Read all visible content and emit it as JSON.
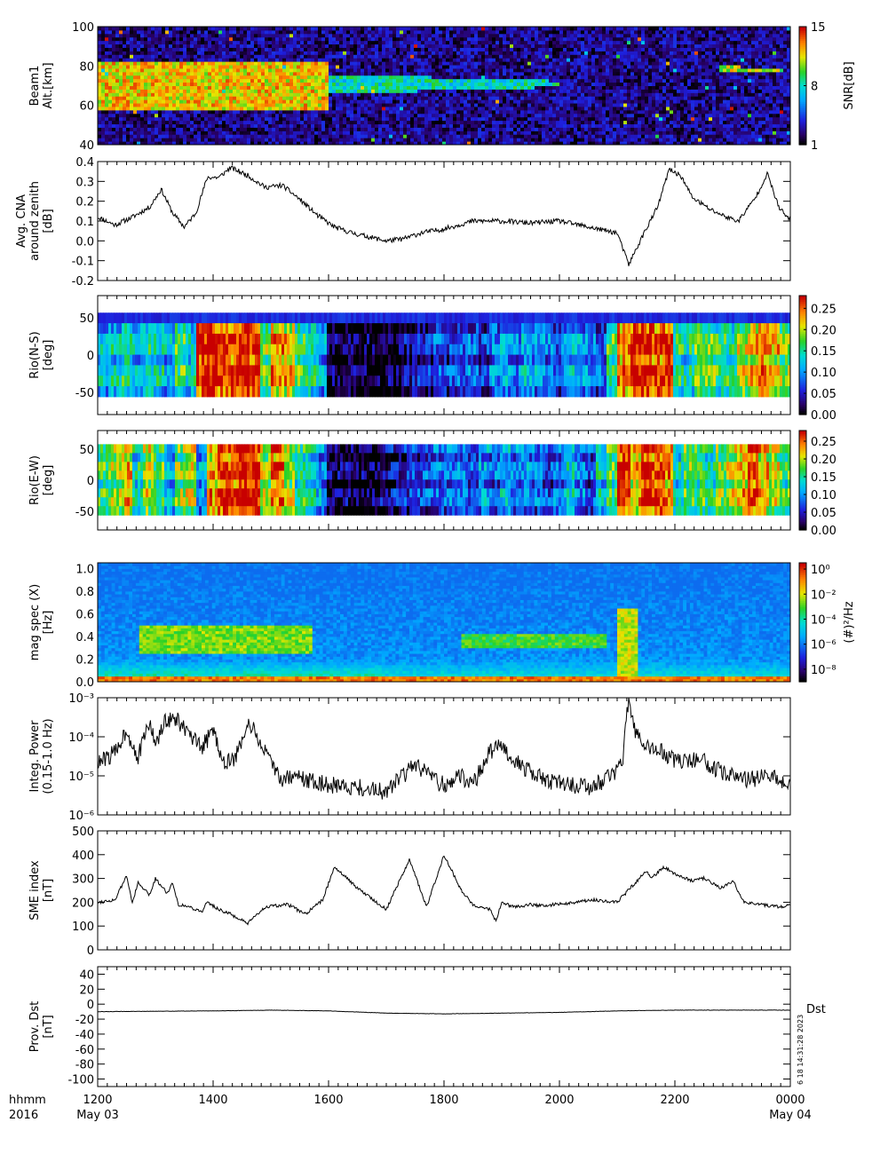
{
  "time_axis": {
    "row1_label": "hhmm",
    "row2_label": "2016",
    "ticks": [
      {
        "hhmm": "1200",
        "date": "May 03"
      },
      {
        "hhmm": "1400",
        "date": ""
      },
      {
        "hhmm": "1600",
        "date": ""
      },
      {
        "hhmm": "1800",
        "date": ""
      },
      {
        "hhmm": "2000",
        "date": ""
      },
      {
        "hhmm": "2200",
        "date": ""
      },
      {
        "hhmm": "0000",
        "date": "May 04"
      }
    ]
  },
  "chart_data": [
    {
      "id": "beam1",
      "type": "heatmap",
      "ylabel_lines": [
        "Beam1",
        "Alt.[km]"
      ],
      "ylim": [
        40,
        100
      ],
      "yticks": [
        "40",
        "60",
        "80",
        "100"
      ],
      "colorbar": {
        "label": "SNR[dB]",
        "ticks": [
          "1",
          "8",
          "15"
        ],
        "range": [
          1,
          15
        ],
        "scale": "linear",
        "palette": "rainbow"
      },
      "features": [
        {
          "t_start": 0,
          "t_end": 4,
          "alt_low": 58,
          "alt_high": 82,
          "level": 14
        },
        {
          "t_start": 4,
          "t_end": 8,
          "alt_low": 66,
          "alt_high": 76,
          "level": 10
        },
        {
          "t_start": 10.8,
          "t_end": 12,
          "alt_low": 77,
          "alt_high": 80,
          "level": 13
        }
      ]
    },
    {
      "id": "cna",
      "type": "line",
      "ylabel_lines": [
        "Avg. CNA",
        "around zenith",
        "[dB]"
      ],
      "ylim": [
        -0.2,
        0.4
      ],
      "yticks": [
        "-0.2",
        "-0.1",
        "0.0",
        "0.1",
        "0.2",
        "0.3",
        "0.4"
      ],
      "series": [
        {
          "x": [
            0,
            0.3,
            0.6,
            0.9,
            1.1,
            1.3,
            1.5,
            1.7,
            1.9,
            2.1,
            2.3,
            2.6,
            2.9,
            3.2,
            3.5,
            3.8,
            4.1,
            4.4,
            4.7,
            5.0,
            5.3,
            5.6,
            6.0,
            6.5,
            7.0,
            7.5,
            8.0,
            8.5,
            9.0,
            9.2,
            9.5,
            9.7,
            9.9,
            10.1,
            10.3,
            10.6,
            10.9,
            11.1,
            11.4,
            11.6,
            11.8,
            12.0
          ],
          "y": [
            0.12,
            0.08,
            0.12,
            0.17,
            0.26,
            0.14,
            0.07,
            0.14,
            0.32,
            0.32,
            0.37,
            0.33,
            0.27,
            0.28,
            0.21,
            0.13,
            0.07,
            0.04,
            0.02,
            0.0,
            0.01,
            0.04,
            0.06,
            0.1,
            0.1,
            0.09,
            0.1,
            0.07,
            0.04,
            -0.12,
            0.06,
            0.17,
            0.36,
            0.33,
            0.22,
            0.16,
            0.12,
            0.1,
            0.22,
            0.34,
            0.17,
            0.1
          ]
        }
      ]
    },
    {
      "id": "rio_ns",
      "type": "heatmap",
      "ylabel_lines": [
        "Rio(N-S)",
        "[deg]"
      ],
      "ylim": [
        -80,
        80
      ],
      "yticks": [
        "-50",
        "0",
        "50"
      ],
      "colorbar": {
        "ticks": [
          "0.00",
          "0.05",
          "0.10",
          "0.15",
          "0.20",
          "0.25"
        ],
        "range": [
          0,
          0.28
        ],
        "scale": "linear",
        "palette": "rainbow"
      },
      "column_levels": [
        0.12,
        0.13,
        0.15,
        0.12,
        0.14,
        0.13,
        0.11,
        0.16,
        0.13,
        0.27,
        0.28,
        0.27,
        0.26,
        0.28,
        0.27,
        0.18,
        0.23,
        0.22,
        0.16,
        0.14,
        0.11,
        0.01,
        0.01,
        0.02,
        0.01,
        0.0,
        0.01,
        0.02,
        0.03,
        0.04,
        0.05,
        0.07,
        0.06,
        0.07,
        0.08,
        0.06,
        0.09,
        0.1,
        0.08,
        0.11,
        0.1,
        0.09,
        0.07,
        0.11,
        0.1,
        0.09,
        0.07,
        0.16,
        0.25,
        0.27,
        0.28,
        0.26,
        0.27,
        0.15,
        0.14,
        0.17,
        0.18,
        0.16,
        0.15,
        0.2,
        0.22,
        0.25,
        0.22,
        0.18
      ]
    },
    {
      "id": "rio_ew",
      "type": "heatmap",
      "ylabel_lines": [
        "Rio(E-W)",
        "[deg]"
      ],
      "ylim": [
        -80,
        80
      ],
      "yticks": [
        "-50",
        "0",
        "50"
      ],
      "colorbar": {
        "ticks": [
          "0.00",
          "0.05",
          "0.10",
          "0.15",
          "0.20",
          "0.25"
        ],
        "range": [
          0,
          0.28
        ],
        "scale": "linear",
        "palette": "rainbow"
      },
      "column_levels": [
        0.16,
        0.19,
        0.22,
        0.14,
        0.2,
        0.17,
        0.12,
        0.18,
        0.2,
        0.1,
        0.23,
        0.27,
        0.26,
        0.28,
        0.27,
        0.2,
        0.24,
        0.2,
        0.15,
        0.13,
        0.1,
        0.02,
        0.02,
        0.01,
        0.02,
        0.01,
        0.03,
        0.04,
        0.05,
        0.06,
        0.07,
        0.08,
        0.08,
        0.09,
        0.07,
        0.1,
        0.08,
        0.11,
        0.09,
        0.1,
        0.08,
        0.06,
        0.09,
        0.12,
        0.09,
        0.07,
        0.13,
        0.16,
        0.27,
        0.22,
        0.28,
        0.26,
        0.24,
        0.14,
        0.17,
        0.16,
        0.15,
        0.18,
        0.2,
        0.23,
        0.26,
        0.22,
        0.2,
        0.16
      ]
    },
    {
      "id": "mag_spec",
      "type": "heatmap",
      "ylabel_lines": [
        "mag spec (X)",
        "[Hz]"
      ],
      "ylim": [
        0,
        1.05
      ],
      "yticks": [
        "0.0",
        "0.2",
        "0.4",
        "0.6",
        "0.8",
        "1.0"
      ],
      "colorbar": {
        "label": "(#)²/Hz",
        "ticks": [
          "10⁻⁸",
          "10⁻⁶",
          "10⁻⁴",
          "10⁻²",
          "10⁰"
        ],
        "range": [
          -9,
          0.5
        ],
        "scale": "log",
        "palette": "rainbow"
      },
      "bands": [
        {
          "t_start": 0.7,
          "t_end": 3.7,
          "f_low": 0.26,
          "f_high": 0.5,
          "level": 0.75
        },
        {
          "t_start": 6.3,
          "t_end": 8.8,
          "f_low": 0.3,
          "f_high": 0.42,
          "level": 0.7
        },
        {
          "t_start": 9.0,
          "t_end": 9.35,
          "f_low": 0.0,
          "f_high": 0.65,
          "level": 0.8
        }
      ]
    },
    {
      "id": "integ_power",
      "type": "line",
      "yscale": "log",
      "ylabel_lines": [
        "Integ. Power",
        "(0.15-1.0 Hz)"
      ],
      "ylim": [
        1e-06,
        0.001
      ],
      "yticks": [
        "10⁻⁶",
        "10⁻⁵",
        "10⁻⁴",
        "10⁻³"
      ],
      "series": [
        {
          "x": [
            0,
            0.3,
            0.5,
            0.7,
            0.9,
            1.0,
            1.2,
            1.4,
            1.6,
            1.8,
            2.0,
            2.2,
            2.4,
            2.6,
            2.8,
            3.0,
            3.2,
            3.4,
            3.6,
            4.0,
            4.5,
            5.0,
            5.5,
            5.8,
            6.0,
            6.3,
            6.5,
            6.8,
            7.0,
            7.3,
            7.6,
            7.9,
            8.2,
            8.5,
            8.8,
            9.0,
            9.1,
            9.2,
            9.3,
            9.5,
            9.8,
            10.1,
            10.4,
            10.7,
            11.0,
            11.3,
            11.6,
            12.0
          ],
          "y": [
            2e-05,
            4e-05,
            0.00015,
            3e-05,
            0.00025,
            6e-05,
            0.0003,
            0.00025,
            0.0001,
            5e-05,
            0.00015,
            2e-05,
            3e-05,
            0.00025,
            8e-05,
            2e-05,
            8e-06,
            1e-05,
            8e-06,
            6e-06,
            5e-06,
            4e-06,
            2e-05,
            8e-06,
            6e-06,
            1e-05,
            6e-06,
            4e-05,
            6e-05,
            2e-05,
            1e-05,
            7e-06,
            6e-06,
            5e-06,
            8e-06,
            1.5e-05,
            3e-05,
            0.001,
            0.00015,
            5e-05,
            4e-05,
            2e-05,
            3e-05,
            1.5e-05,
            1e-05,
            8e-06,
            1e-05,
            7e-06
          ]
        }
      ]
    },
    {
      "id": "sme",
      "type": "line",
      "ylabel_lines": [
        "SME index",
        "[nT]"
      ],
      "ylim": [
        0,
        500
      ],
      "yticks": [
        "0",
        "100",
        "200",
        "300",
        "400",
        "500"
      ],
      "series": [
        {
          "x": [
            0,
            0.3,
            0.5,
            0.6,
            0.7,
            0.9,
            1.0,
            1.2,
            1.3,
            1.4,
            1.6,
            1.8,
            1.9,
            2.1,
            2.3,
            2.6,
            2.9,
            3.3,
            3.6,
            3.9,
            4.1,
            4.5,
            5.0,
            5.4,
            5.7,
            6.0,
            6.3,
            6.5,
            6.8,
            6.9,
            7.0,
            7.2,
            7.5,
            7.7,
            7.9,
            8.1,
            8.3,
            8.6,
            9.0,
            9.5,
            9.6,
            9.8,
            10.0,
            10.3,
            10.5,
            10.8,
            11.0,
            11.2,
            11.5,
            11.8,
            12.0
          ],
          "y": [
            200,
            210,
            310,
            200,
            280,
            230,
            300,
            240,
            280,
            190,
            180,
            160,
            200,
            170,
            150,
            110,
            180,
            190,
            150,
            210,
            350,
            260,
            170,
            380,
            180,
            400,
            250,
            190,
            170,
            120,
            200,
            180,
            190,
            185,
            190,
            195,
            200,
            210,
            200,
            330,
            300,
            350,
            320,
            290,
            300,
            260,
            290,
            200,
            190,
            180,
            190
          ]
        }
      ]
    },
    {
      "id": "dst",
      "type": "line",
      "ylabel_lines": [
        "Prov. Dst",
        "[nT]"
      ],
      "ylim": [
        -110,
        50
      ],
      "yticks": [
        "-100",
        "-80",
        "-60",
        "-40",
        "-20",
        "0",
        "20",
        "40"
      ],
      "series_label": "Dst",
      "annotation": "6 18 14:31:28 2023",
      "series": [
        {
          "x": [
            0,
            2,
            3,
            4,
            5,
            6,
            7,
            8,
            9,
            10,
            11,
            12
          ],
          "y": [
            -10,
            -9,
            -8,
            -9,
            -12,
            -13,
            -12,
            -11,
            -9,
            -8,
            -8,
            -8
          ]
        }
      ]
    }
  ]
}
